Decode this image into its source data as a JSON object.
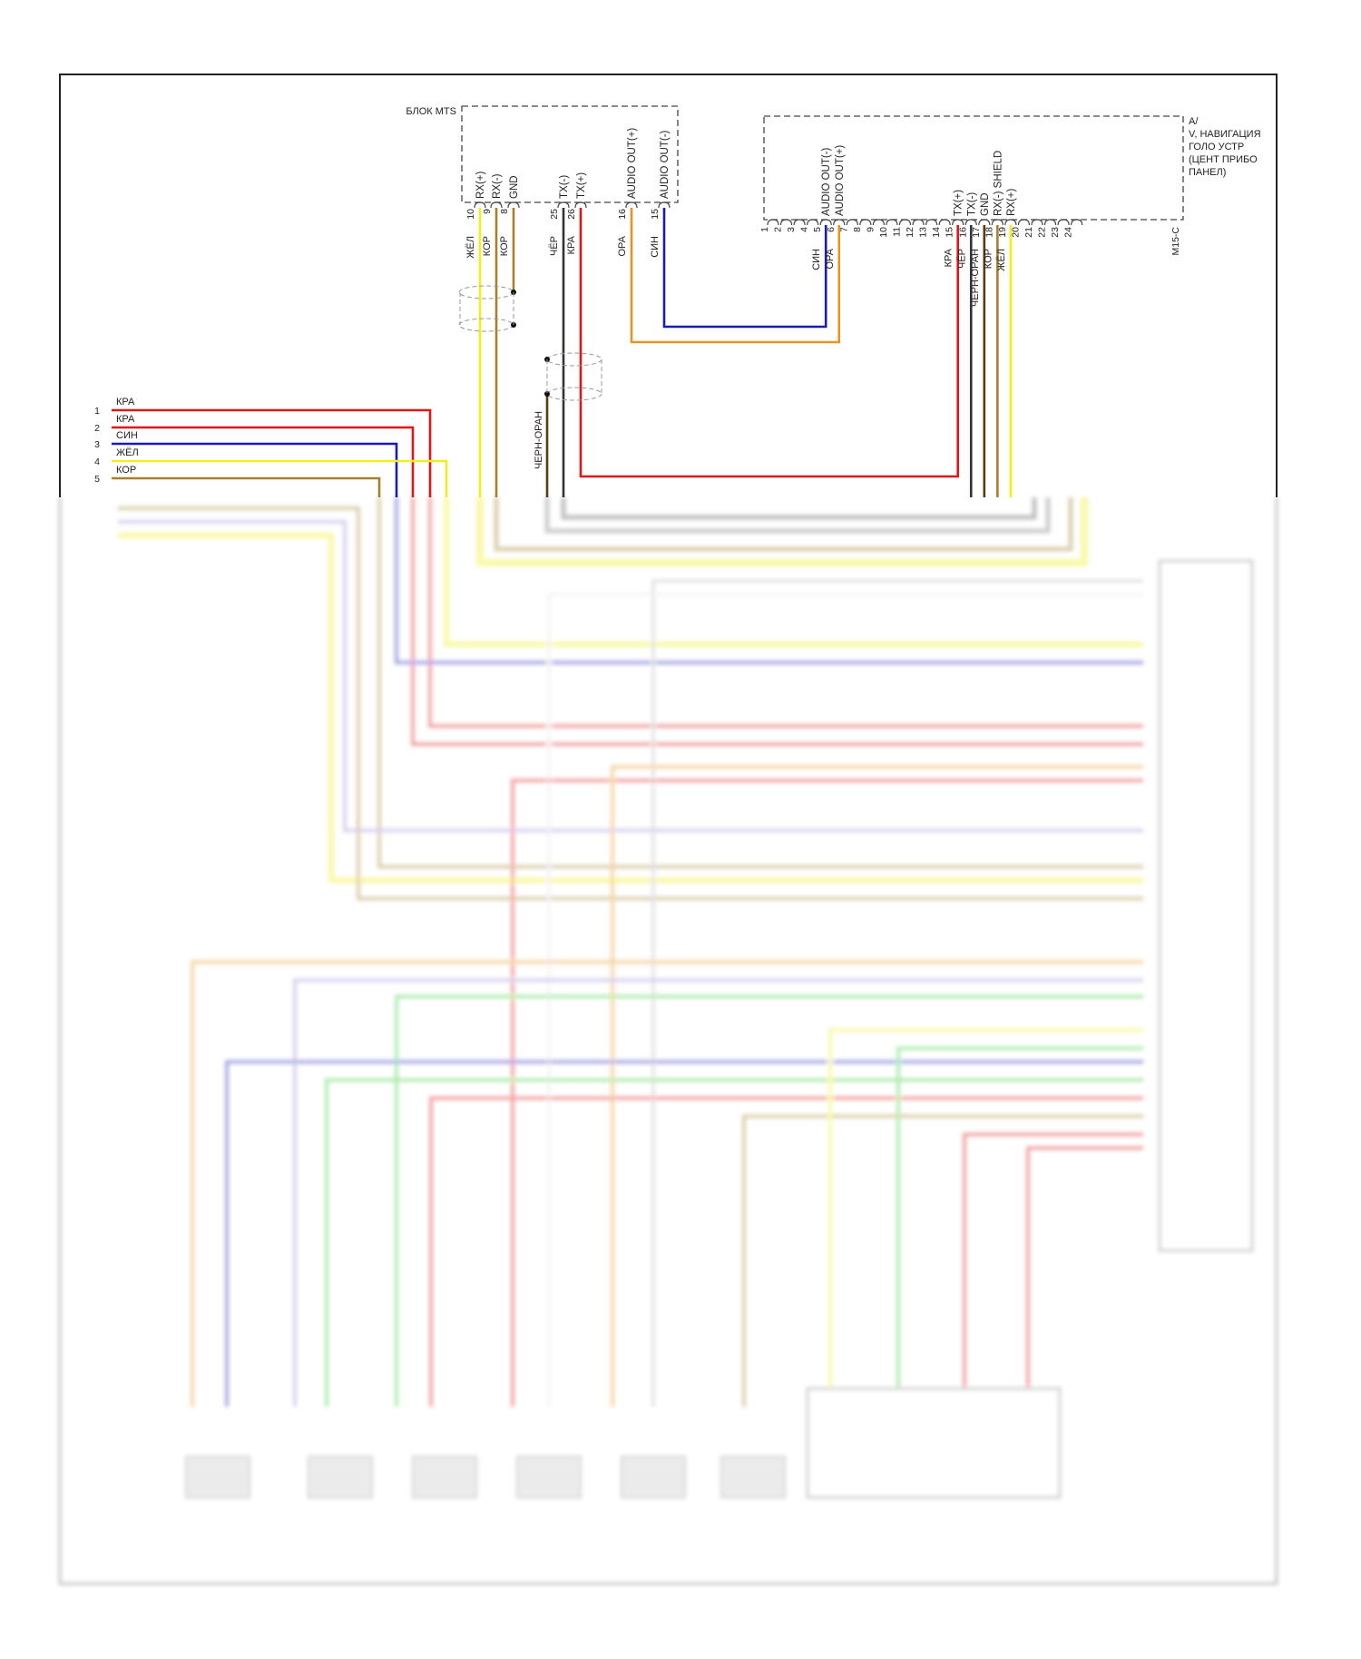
{
  "mts_block": {
    "label": "БЛОК MTS",
    "pins": [
      {
        "num": "10",
        "signal": "RX(+)",
        "wire": "ЖЁЛ",
        "color": "#f2ee1a"
      },
      {
        "num": "9",
        "signal": "RX(-)",
        "wire": "КОР",
        "color": "#a5812a"
      },
      {
        "num": "8",
        "signal": "GND",
        "wire": "КОР",
        "color": "#a5812a"
      },
      {
        "num": "25",
        "signal": "TX(-)",
        "wire": "ЧЁР",
        "color": "#333333"
      },
      {
        "num": "26",
        "signal": "TX(+)",
        "wire": "КРА",
        "color": "#e01515"
      },
      {
        "num": "16",
        "signal": "AUDIO OUT(+)",
        "wire": "ОРА",
        "color": "#e8941e"
      },
      {
        "num": "15",
        "signal": "AUDIO OUT(-)",
        "wire": "СИН",
        "color": "#1a1ab8"
      }
    ]
  },
  "av_block": {
    "label_lines": [
      "A/",
      "V, НАВИГАЦИЯ",
      "ГОЛО УСТР",
      "(ЦЕНТ ПРИБО",
      "ПАНЕЛ)"
    ],
    "connector": "M15-C",
    "pin_numbers": [
      "1",
      "2",
      "3",
      "4",
      "5",
      "6",
      "7",
      "8",
      "9",
      "10",
      "11",
      "12",
      "13",
      "14",
      "15",
      "16",
      "17",
      "18",
      "19",
      "20",
      "21",
      "22",
      "23",
      "24"
    ],
    "pins": [
      {
        "num": "5",
        "signal": "AUDIO OUT(-)",
        "wire": "СИН",
        "color": "#1a1ab8"
      },
      {
        "num": "6",
        "signal": "AUDIO OUT(+)",
        "wire": "ОРА",
        "color": "#e8941e"
      },
      {
        "num": "15",
        "signal": "TX(+)",
        "wire": "КРА",
        "color": "#e01515"
      },
      {
        "num": "16",
        "signal": "TX(-)",
        "wire": "ЧЁР",
        "color": "#333333"
      },
      {
        "num": "17",
        "signal": "GND",
        "wire": "ЧЕРН-ОРАН",
        "color": "#5a3a10"
      },
      {
        "num": "18",
        "signal": "RX(-) SHIELD",
        "wire": "КОР",
        "color": "#a5812a"
      },
      {
        "num": "19",
        "signal": "RX(+)",
        "wire": "ЖЁЛ",
        "color": "#f2ee1a"
      }
    ]
  },
  "shield_wire_label": "ЧЕРН-ОРАН",
  "left_connector": [
    {
      "num": "1",
      "wire": "КРА",
      "color": "#e01515"
    },
    {
      "num": "2",
      "wire": "КРА",
      "color": "#e01515"
    },
    {
      "num": "3",
      "wire": "СИН",
      "color": "#1a1ab8"
    },
    {
      "num": "4",
      "wire": "ЖЁЛ",
      "color": "#f2ee1a"
    },
    {
      "num": "5",
      "wire": "КОР",
      "color": "#a5812a"
    }
  ]
}
